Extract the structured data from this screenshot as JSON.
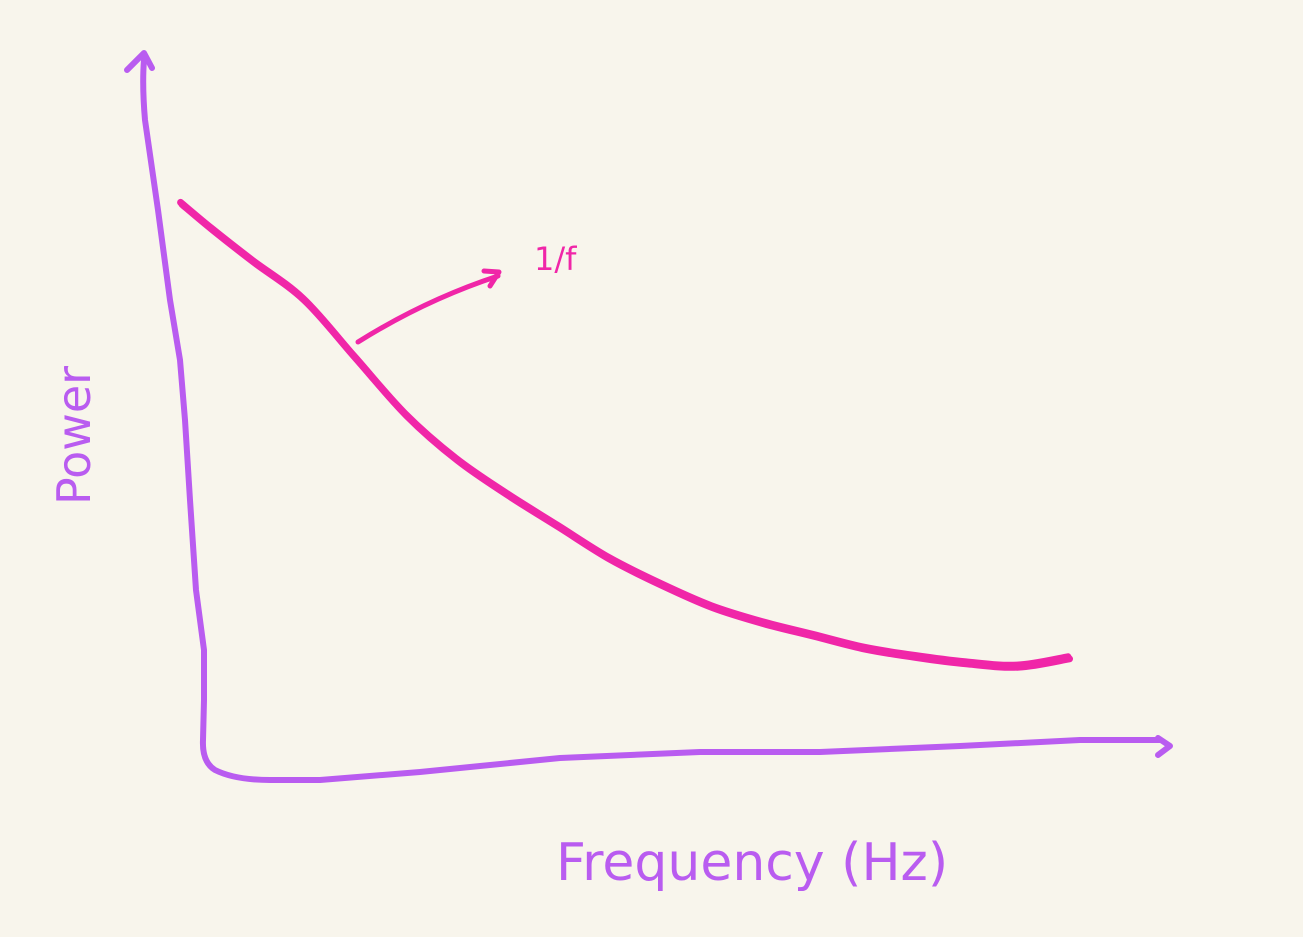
{
  "colors": {
    "background": "#f8f5ec",
    "axes": "#b95cf0",
    "curve": "#f026a8"
  },
  "chart_data": {
    "type": "line",
    "title": "",
    "xlabel": "Frequency (Hz)",
    "ylabel": "Power",
    "grid": false,
    "ticks": false,
    "xlim": [
      0,
      10
    ],
    "ylim": [
      0,
      10
    ],
    "series": [
      {
        "name": "",
        "x": [
          0.3,
          0.6,
          1.0,
          1.5,
          2.0,
          2.5,
          3.0,
          3.5,
          4.0,
          4.5,
          5.0,
          5.5,
          6.0,
          6.5,
          7.0,
          7.5,
          8.0,
          8.5,
          9.0
        ],
        "y": [
          8.4,
          8.0,
          7.5,
          6.9,
          6.0,
          5.1,
          4.4,
          3.85,
          3.35,
          2.85,
          2.45,
          2.1,
          1.85,
          1.65,
          1.45,
          1.32,
          1.22,
          1.17,
          1.3
        ]
      }
    ],
    "annotations": [
      {
        "text": "1/f",
        "arrow": true
      }
    ]
  }
}
